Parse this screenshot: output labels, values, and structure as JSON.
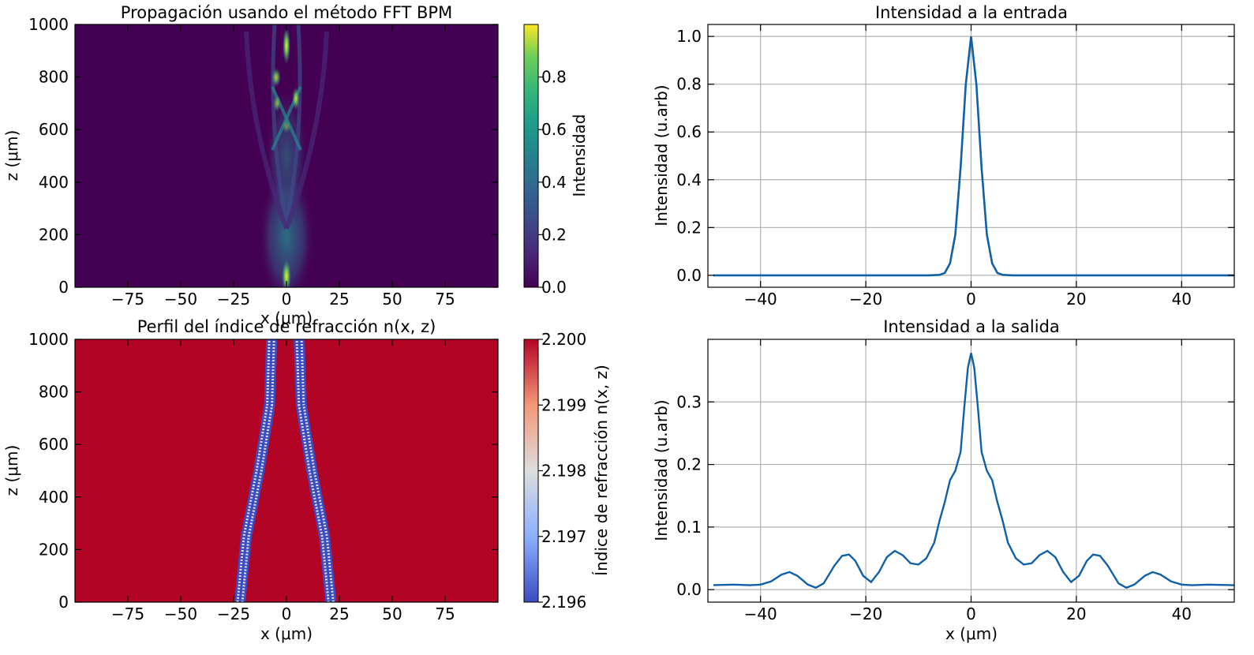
{
  "chart_data": [
    {
      "type": "heatmap",
      "title": "Propagación usando el método FFT BPM",
      "xlabel": "x (μm)",
      "ylabel": "z (μm)",
      "xlim": [
        -100,
        100
      ],
      "ylim": [
        0,
        1000
      ],
      "xticks": [
        -75,
        -50,
        -25,
        0,
        25,
        50,
        75
      ],
      "yticks": [
        0,
        200,
        400,
        600,
        800,
        1000
      ],
      "colormap": "viridis",
      "colorbar": {
        "label": "Intensidad",
        "range": [
          0,
          1
        ],
        "ticks": [
          "0.0",
          "0.2",
          "0.4",
          "0.6",
          "0.8"
        ]
      },
      "features": {
        "input_peak": {
          "x": 0,
          "z": 0,
          "intensity": 1.0
        },
        "bright_spots": [
          {
            "x": 0,
            "z": 940,
            "intensity": 0.75
          },
          {
            "x": -4,
            "z": 820,
            "intensity": 0.6
          },
          {
            "x": 4,
            "z": 720,
            "intensity": 0.6
          },
          {
            "x": -4,
            "z": 700,
            "intensity": 0.55
          },
          {
            "x": 0,
            "z": 620,
            "intensity": 0.4
          }
        ]
      }
    },
    {
      "type": "heatmap",
      "title": "Perfil del índice de refracción n(x, z)",
      "xlabel": "x (μm)",
      "ylabel": "z (μm)",
      "xlim": [
        -100,
        100
      ],
      "ylim": [
        0,
        1000
      ],
      "xticks": [
        -75,
        -50,
        -25,
        0,
        25,
        50,
        75
      ],
      "yticks": [
        0,
        200,
        400,
        600,
        800,
        1000
      ],
      "colormap": "coolwarm",
      "colorbar": {
        "label": "Índice de refracción n(x, z)",
        "range": [
          2.196,
          2.2
        ],
        "ticks": [
          "2.196",
          "2.197",
          "2.198",
          "2.199",
          "2.200"
        ]
      },
      "background_index": 2.2,
      "waveguides": [
        {
          "name": "left",
          "path": [
            [
              -22,
              0
            ],
            [
              -19,
              250
            ],
            [
              -13,
              500
            ],
            [
              -8,
              750
            ],
            [
              -7,
              1000
            ]
          ]
        },
        {
          "name": "right",
          "path": [
            [
              21,
              0
            ],
            [
              18,
              250
            ],
            [
              12,
              500
            ],
            [
              7,
              750
            ],
            [
              6,
              1000
            ]
          ]
        }
      ]
    },
    {
      "type": "line",
      "title": "Intensidad a la entrada",
      "xlabel": "",
      "ylabel": "Intensidad (u.arb)",
      "xlim": [
        -50,
        50
      ],
      "ylim": [
        -0.05,
        1.05
      ],
      "grid": true,
      "xticks": [
        -40,
        -20,
        0,
        20,
        40
      ],
      "yticks": [
        "0.0",
        "0.2",
        "0.4",
        "0.6",
        "0.8",
        "1.0"
      ],
      "series": [
        {
          "x": [
            -50,
            -8,
            -6,
            -5,
            -4,
            -3,
            -2,
            -1,
            0,
            1,
            2,
            3,
            4,
            5,
            6,
            8,
            50
          ],
          "y": [
            0,
            0,
            0.002,
            0.01,
            0.05,
            0.17,
            0.45,
            0.8,
            1.0,
            0.8,
            0.45,
            0.17,
            0.05,
            0.01,
            0.002,
            0,
            0
          ]
        }
      ]
    },
    {
      "type": "line",
      "title": "Intensidad a la salida",
      "xlabel": "x (μm)",
      "ylabel": "Intensidad (u.arb)",
      "xlim": [
        -50,
        50
      ],
      "ylim": [
        -0.02,
        0.4
      ],
      "grid": true,
      "xticks": [
        -40,
        -20,
        0,
        20,
        40
      ],
      "yticks": [
        "0.0",
        "0.1",
        "0.2",
        "0.3"
      ],
      "series": [
        {
          "x": [
            -50,
            -45,
            -42,
            -40,
            -38,
            -36,
            -34.5,
            -33,
            -31,
            -29.5,
            -28,
            -26,
            -24.5,
            -23.2,
            -22,
            -20.5,
            -19,
            -17.5,
            -16,
            -14.5,
            -13,
            -11.5,
            -10,
            -8.5,
            -7,
            -6,
            -5,
            -4,
            -3,
            -2,
            -1.3,
            -0.6,
            0,
            0.6,
            1.3,
            2,
            3,
            4,
            5,
            6,
            7,
            8.5,
            10,
            11.5,
            13,
            14.5,
            16,
            17.5,
            19,
            20.5,
            22,
            23.2,
            24.5,
            26,
            28,
            29.5,
            31,
            33,
            34.5,
            36,
            38,
            40,
            42,
            45,
            50
          ],
          "y": [
            0.007,
            0.008,
            0.007,
            0.008,
            0.013,
            0.024,
            0.028,
            0.022,
            0.008,
            0.003,
            0.01,
            0.038,
            0.054,
            0.056,
            0.046,
            0.022,
            0.012,
            0.028,
            0.052,
            0.062,
            0.055,
            0.042,
            0.04,
            0.05,
            0.075,
            0.11,
            0.14,
            0.175,
            0.19,
            0.22,
            0.29,
            0.355,
            0.378,
            0.355,
            0.29,
            0.22,
            0.19,
            0.175,
            0.14,
            0.11,
            0.075,
            0.05,
            0.04,
            0.042,
            0.055,
            0.062,
            0.052,
            0.028,
            0.012,
            0.022,
            0.046,
            0.056,
            0.054,
            0.038,
            0.01,
            0.003,
            0.008,
            0.022,
            0.028,
            0.024,
            0.013,
            0.008,
            0.007,
            0.008,
            0.007
          ]
        }
      ]
    }
  ],
  "colors": {
    "line": "#1060a8",
    "grid": "#b0b0b0",
    "cladding": "#b40426",
    "background_field": "#440154"
  }
}
